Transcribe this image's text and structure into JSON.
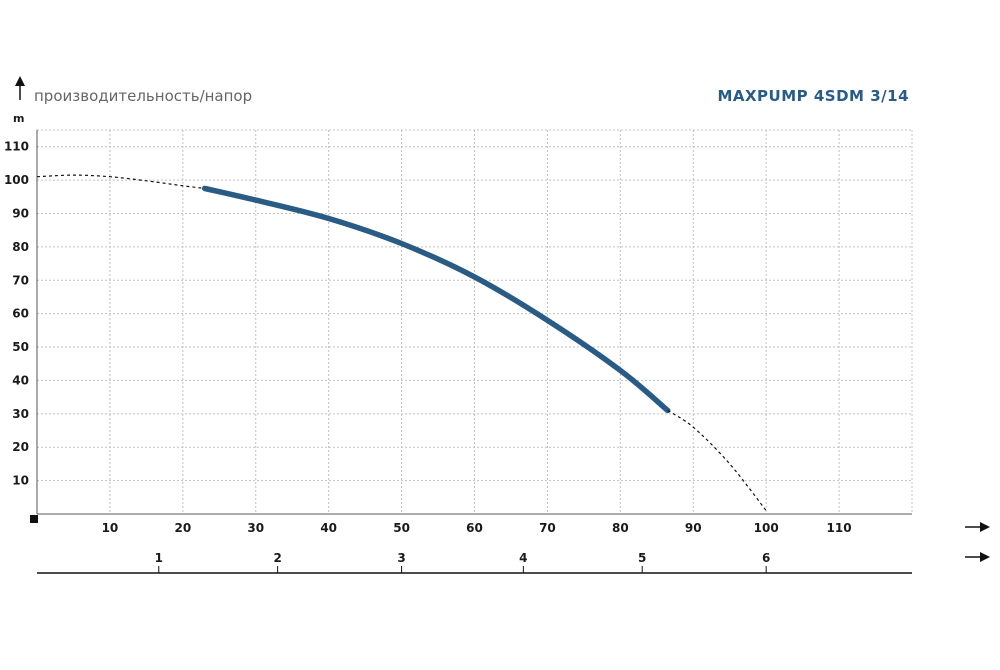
{
  "chart_data": {
    "type": "line",
    "title": "MAXPUMP 4SDM 3/14",
    "ylabel": "производительность/напор",
    "yunit": "m",
    "xlim": [
      0,
      120
    ],
    "ylim": [
      0,
      115
    ],
    "x_ticks": [
      10,
      20,
      30,
      40,
      50,
      60,
      70,
      80,
      90,
      100,
      110
    ],
    "y_ticks": [
      10,
      20,
      30,
      40,
      50,
      60,
      70,
      80,
      90,
      100,
      110
    ],
    "secondary_x_ticks": [
      {
        "label": "1",
        "x": 16.7
      },
      {
        "label": "2",
        "x": 33.0
      },
      {
        "label": "3",
        "x": 50.0
      },
      {
        "label": "4",
        "x": 66.7
      },
      {
        "label": "5",
        "x": 83.0
      },
      {
        "label": "6",
        "x": 100.0
      }
    ],
    "grid": true,
    "series": [
      {
        "style": "dashed",
        "x": [
          0,
          5,
          10,
          15,
          20,
          23
        ],
        "y": [
          101,
          101.5,
          101,
          99.8,
          98.3,
          97.5
        ]
      },
      {
        "style": "solid",
        "x": [
          23,
          30,
          40,
          50,
          60,
          70,
          80,
          86.5
        ],
        "y": [
          97.5,
          94,
          88.5,
          81,
          71,
          58,
          43,
          31
        ]
      },
      {
        "style": "dashed",
        "x": [
          86.5,
          90,
          95,
          100
        ],
        "y": [
          31,
          26,
          15,
          1
        ]
      }
    ],
    "colors": {
      "curve": "#2a5b85",
      "title": "#2a5b85",
      "grid": "#c0c0c0"
    }
  }
}
